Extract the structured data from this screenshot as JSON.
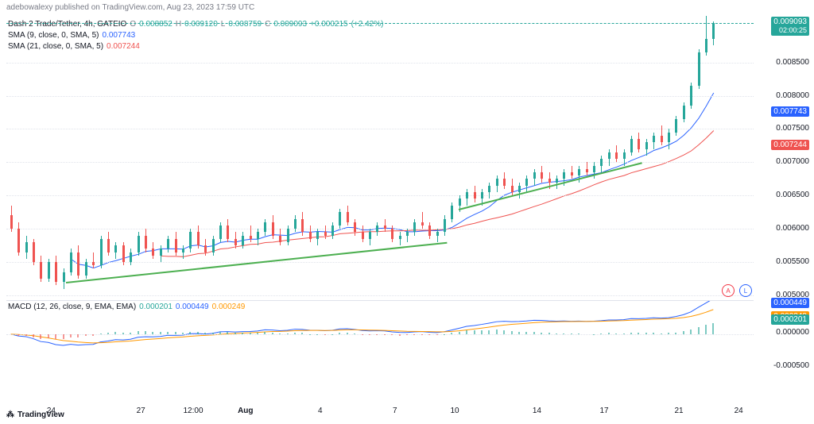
{
  "header": {
    "publisher": "adebowalexy published on TradingView.com, Aug 23, 2023 17:59 UTC"
  },
  "legend": {
    "symbol": "Dash 2 Trade/Tether, 4h, GATEIO",
    "ohlc": {
      "O": "0.008852",
      "H": "0.009120",
      "L": "0.008759",
      "C": "0.009093",
      "change": "+0.000215",
      "change_pct": "(+2.42%)"
    },
    "ohlc_color": "#26a69a",
    "sma9_label": "SMA (9, close, 0, SMA, 5)",
    "sma9_val": "0.007743",
    "sma9_color": "#2962ff",
    "sma21_label": "SMA (21, close, 0, SMA, 5)",
    "sma21_val": "0.007244",
    "sma21_color": "#ef5350"
  },
  "currency": "USDT",
  "price_axis": {
    "min": 0.005,
    "max": 0.0092,
    "ticks": [
      0.005,
      0.0055,
      0.006,
      0.0065,
      0.007,
      0.0075,
      0.008,
      0.0085
    ],
    "badges": [
      {
        "val": "0.009093",
        "sub": "02:00:25",
        "color": "#26a69a",
        "y": 0.009093
      },
      {
        "val": "0.007743",
        "color": "#2962ff",
        "y": 0.007743
      },
      {
        "val": "0.007244",
        "color": "#ef5350",
        "y": 0.007244
      }
    ]
  },
  "x_axis": {
    "ticks": [
      {
        "label": "24",
        "x": 0.06
      },
      {
        "label": "27",
        "x": 0.18
      },
      {
        "label": "12:00",
        "x": 0.25
      },
      {
        "label": "Aug",
        "x": 0.32,
        "bold": true
      },
      {
        "label": "4",
        "x": 0.42
      },
      {
        "label": "7",
        "x": 0.52
      },
      {
        "label": "10",
        "x": 0.6
      },
      {
        "label": "14",
        "x": 0.71
      },
      {
        "label": "17",
        "x": 0.8
      },
      {
        "label": "21",
        "x": 0.9
      },
      {
        "label": "24",
        "x": 0.98
      }
    ]
  },
  "colors": {
    "up": "#26a69a",
    "down": "#ef5350",
    "grid": "#e0e3eb",
    "bg": "#ffffff",
    "trend": "#4caf50"
  },
  "candles": [
    {
      "x": 0.005,
      "o": 0.0062,
      "h": 0.00635,
      "l": 0.00595,
      "c": 0.006
    },
    {
      "x": 0.015,
      "o": 0.006,
      "h": 0.0061,
      "l": 0.0056,
      "c": 0.00565
    },
    {
      "x": 0.025,
      "o": 0.00565,
      "h": 0.0059,
      "l": 0.00555,
      "c": 0.0058
    },
    {
      "x": 0.035,
      "o": 0.0058,
      "h": 0.00585,
      "l": 0.00545,
      "c": 0.0055
    },
    {
      "x": 0.045,
      "o": 0.0055,
      "h": 0.0056,
      "l": 0.0052,
      "c": 0.00525
    },
    {
      "x": 0.055,
      "o": 0.00525,
      "h": 0.00555,
      "l": 0.0052,
      "c": 0.0055
    },
    {
      "x": 0.065,
      "o": 0.0055,
      "h": 0.0056,
      "l": 0.00515,
      "c": 0.0052
    },
    {
      "x": 0.075,
      "o": 0.0052,
      "h": 0.0054,
      "l": 0.0051,
      "c": 0.00535
    },
    {
      "x": 0.085,
      "o": 0.00535,
      "h": 0.0057,
      "l": 0.0053,
      "c": 0.00565
    },
    {
      "x": 0.095,
      "o": 0.00565,
      "h": 0.00575,
      "l": 0.00525,
      "c": 0.0053
    },
    {
      "x": 0.105,
      "o": 0.0053,
      "h": 0.00555,
      "l": 0.00525,
      "c": 0.0055
    },
    {
      "x": 0.115,
      "o": 0.0055,
      "h": 0.00565,
      "l": 0.0054,
      "c": 0.00545
    },
    {
      "x": 0.125,
      "o": 0.00545,
      "h": 0.0059,
      "l": 0.0054,
      "c": 0.00585
    },
    {
      "x": 0.135,
      "o": 0.00585,
      "h": 0.00595,
      "l": 0.0056,
      "c": 0.00565
    },
    {
      "x": 0.145,
      "o": 0.00565,
      "h": 0.0058,
      "l": 0.00555,
      "c": 0.00575
    },
    {
      "x": 0.155,
      "o": 0.00575,
      "h": 0.0058,
      "l": 0.00545,
      "c": 0.0055
    },
    {
      "x": 0.165,
      "o": 0.0055,
      "h": 0.0057,
      "l": 0.00545,
      "c": 0.00565
    },
    {
      "x": 0.175,
      "o": 0.00565,
      "h": 0.00595,
      "l": 0.0056,
      "c": 0.0059
    },
    {
      "x": 0.185,
      "o": 0.0059,
      "h": 0.006,
      "l": 0.00565,
      "c": 0.0057
    },
    {
      "x": 0.195,
      "o": 0.0057,
      "h": 0.0058,
      "l": 0.00555,
      "c": 0.0056
    },
    {
      "x": 0.205,
      "o": 0.0056,
      "h": 0.00575,
      "l": 0.0055,
      "c": 0.0057
    },
    {
      "x": 0.215,
      "o": 0.0057,
      "h": 0.0059,
      "l": 0.00565,
      "c": 0.00585
    },
    {
      "x": 0.225,
      "o": 0.00585,
      "h": 0.00595,
      "l": 0.0056,
      "c": 0.00565
    },
    {
      "x": 0.235,
      "o": 0.00565,
      "h": 0.00575,
      "l": 0.00555,
      "c": 0.0057
    },
    {
      "x": 0.245,
      "o": 0.0057,
      "h": 0.006,
      "l": 0.00565,
      "c": 0.00595
    },
    {
      "x": 0.255,
      "o": 0.00595,
      "h": 0.00605,
      "l": 0.0057,
      "c": 0.00575
    },
    {
      "x": 0.265,
      "o": 0.00575,
      "h": 0.00585,
      "l": 0.0056,
      "c": 0.00565
    },
    {
      "x": 0.275,
      "o": 0.00565,
      "h": 0.0059,
      "l": 0.0056,
      "c": 0.00585
    },
    {
      "x": 0.285,
      "o": 0.00585,
      "h": 0.0061,
      "l": 0.0058,
      "c": 0.00605
    },
    {
      "x": 0.295,
      "o": 0.00605,
      "h": 0.00615,
      "l": 0.0058,
      "c": 0.00585
    },
    {
      "x": 0.305,
      "o": 0.00585,
      "h": 0.00595,
      "l": 0.0057,
      "c": 0.00575
    },
    {
      "x": 0.315,
      "o": 0.00575,
      "h": 0.00595,
      "l": 0.0057,
      "c": 0.0059
    },
    {
      "x": 0.325,
      "o": 0.0059,
      "h": 0.00605,
      "l": 0.0058,
      "c": 0.00585
    },
    {
      "x": 0.335,
      "o": 0.00585,
      "h": 0.006,
      "l": 0.00575,
      "c": 0.00595
    },
    {
      "x": 0.345,
      "o": 0.00595,
      "h": 0.00615,
      "l": 0.0059,
      "c": 0.0061
    },
    {
      "x": 0.355,
      "o": 0.0061,
      "h": 0.0062,
      "l": 0.00585,
      "c": 0.0059
    },
    {
      "x": 0.365,
      "o": 0.0059,
      "h": 0.006,
      "l": 0.00575,
      "c": 0.0058
    },
    {
      "x": 0.375,
      "o": 0.0058,
      "h": 0.00605,
      "l": 0.00575,
      "c": 0.006
    },
    {
      "x": 0.385,
      "o": 0.006,
      "h": 0.0062,
      "l": 0.00595,
      "c": 0.00615
    },
    {
      "x": 0.395,
      "o": 0.00615,
      "h": 0.00625,
      "l": 0.0059,
      "c": 0.00595
    },
    {
      "x": 0.405,
      "o": 0.00595,
      "h": 0.00605,
      "l": 0.0058,
      "c": 0.00585
    },
    {
      "x": 0.415,
      "o": 0.00585,
      "h": 0.006,
      "l": 0.00575,
      "c": 0.00595
    },
    {
      "x": 0.425,
      "o": 0.00595,
      "h": 0.00605,
      "l": 0.00585,
      "c": 0.0059
    },
    {
      "x": 0.435,
      "o": 0.0059,
      "h": 0.0061,
      "l": 0.00585,
      "c": 0.00605
    },
    {
      "x": 0.445,
      "o": 0.00605,
      "h": 0.0063,
      "l": 0.006,
      "c": 0.00625
    },
    {
      "x": 0.455,
      "o": 0.00625,
      "h": 0.00635,
      "l": 0.00605,
      "c": 0.0061
    },
    {
      "x": 0.465,
      "o": 0.0061,
      "h": 0.00615,
      "l": 0.0059,
      "c": 0.00595
    },
    {
      "x": 0.475,
      "o": 0.00595,
      "h": 0.00605,
      "l": 0.0058,
      "c": 0.00585
    },
    {
      "x": 0.485,
      "o": 0.00585,
      "h": 0.006,
      "l": 0.00575,
      "c": 0.00595
    },
    {
      "x": 0.495,
      "o": 0.00595,
      "h": 0.0061,
      "l": 0.0059,
      "c": 0.00605
    },
    {
      "x": 0.505,
      "o": 0.00605,
      "h": 0.00615,
      "l": 0.00595,
      "c": 0.006
    },
    {
      "x": 0.515,
      "o": 0.006,
      "h": 0.00605,
      "l": 0.0058,
      "c": 0.00585
    },
    {
      "x": 0.525,
      "o": 0.00585,
      "h": 0.00595,
      "l": 0.00575,
      "c": 0.0059
    },
    {
      "x": 0.535,
      "o": 0.0059,
      "h": 0.006,
      "l": 0.0058,
      "c": 0.00595
    },
    {
      "x": 0.545,
      "o": 0.00595,
      "h": 0.00615,
      "l": 0.0059,
      "c": 0.0061
    },
    {
      "x": 0.555,
      "o": 0.0061,
      "h": 0.00625,
      "l": 0.006,
      "c": 0.00605
    },
    {
      "x": 0.565,
      "o": 0.00605,
      "h": 0.0061,
      "l": 0.00585,
      "c": 0.0059
    },
    {
      "x": 0.575,
      "o": 0.0059,
      "h": 0.006,
      "l": 0.0058,
      "c": 0.00595
    },
    {
      "x": 0.585,
      "o": 0.00595,
      "h": 0.0062,
      "l": 0.0059,
      "c": 0.00615
    },
    {
      "x": 0.595,
      "o": 0.00615,
      "h": 0.0064,
      "l": 0.0061,
      "c": 0.00635
    },
    {
      "x": 0.605,
      "o": 0.00635,
      "h": 0.0065,
      "l": 0.00625,
      "c": 0.00645
    },
    {
      "x": 0.615,
      "o": 0.00645,
      "h": 0.0066,
      "l": 0.00635,
      "c": 0.00655
    },
    {
      "x": 0.625,
      "o": 0.00655,
      "h": 0.00665,
      "l": 0.0064,
      "c": 0.00645
    },
    {
      "x": 0.635,
      "o": 0.00645,
      "h": 0.0066,
      "l": 0.00635,
      "c": 0.00655
    },
    {
      "x": 0.645,
      "o": 0.00655,
      "h": 0.0067,
      "l": 0.00645,
      "c": 0.00665
    },
    {
      "x": 0.655,
      "o": 0.00665,
      "h": 0.0068,
      "l": 0.00655,
      "c": 0.00675
    },
    {
      "x": 0.665,
      "o": 0.00675,
      "h": 0.00685,
      "l": 0.0066,
      "c": 0.00665
    },
    {
      "x": 0.675,
      "o": 0.00665,
      "h": 0.00675,
      "l": 0.0065,
      "c": 0.00655
    },
    {
      "x": 0.685,
      "o": 0.00655,
      "h": 0.0067,
      "l": 0.00645,
      "c": 0.00665
    },
    {
      "x": 0.695,
      "o": 0.00665,
      "h": 0.0068,
      "l": 0.00655,
      "c": 0.00675
    },
    {
      "x": 0.705,
      "o": 0.00675,
      "h": 0.0069,
      "l": 0.00665,
      "c": 0.00685
    },
    {
      "x": 0.715,
      "o": 0.00685,
      "h": 0.00695,
      "l": 0.0067,
      "c": 0.00675
    },
    {
      "x": 0.725,
      "o": 0.00675,
      "h": 0.00685,
      "l": 0.0066,
      "c": 0.0067
    },
    {
      "x": 0.735,
      "o": 0.0067,
      "h": 0.0068,
      "l": 0.0066,
      "c": 0.00675
    },
    {
      "x": 0.745,
      "o": 0.00675,
      "h": 0.0069,
      "l": 0.00665,
      "c": 0.00685
    },
    {
      "x": 0.755,
      "o": 0.00685,
      "h": 0.00695,
      "l": 0.00675,
      "c": 0.0068
    },
    {
      "x": 0.765,
      "o": 0.0068,
      "h": 0.00695,
      "l": 0.0067,
      "c": 0.0069
    },
    {
      "x": 0.775,
      "o": 0.0069,
      "h": 0.007,
      "l": 0.0068,
      "c": 0.00685
    },
    {
      "x": 0.785,
      "o": 0.00685,
      "h": 0.007,
      "l": 0.00675,
      "c": 0.00695
    },
    {
      "x": 0.795,
      "o": 0.00695,
      "h": 0.0071,
      "l": 0.00685,
      "c": 0.00705
    },
    {
      "x": 0.805,
      "o": 0.00705,
      "h": 0.0072,
      "l": 0.00695,
      "c": 0.00715
    },
    {
      "x": 0.815,
      "o": 0.00715,
      "h": 0.00725,
      "l": 0.007,
      "c": 0.00705
    },
    {
      "x": 0.825,
      "o": 0.00705,
      "h": 0.0072,
      "l": 0.00695,
      "c": 0.00715
    },
    {
      "x": 0.835,
      "o": 0.00715,
      "h": 0.0074,
      "l": 0.0071,
      "c": 0.00735
    },
    {
      "x": 0.845,
      "o": 0.00735,
      "h": 0.00745,
      "l": 0.00715,
      "c": 0.0072
    },
    {
      "x": 0.855,
      "o": 0.0072,
      "h": 0.00735,
      "l": 0.0071,
      "c": 0.0073
    },
    {
      "x": 0.865,
      "o": 0.0073,
      "h": 0.00745,
      "l": 0.0072,
      "c": 0.0074
    },
    {
      "x": 0.875,
      "o": 0.0074,
      "h": 0.00755,
      "l": 0.00725,
      "c": 0.0073
    },
    {
      "x": 0.885,
      "o": 0.0073,
      "h": 0.0075,
      "l": 0.0072,
      "c": 0.00745
    },
    {
      "x": 0.895,
      "o": 0.00745,
      "h": 0.0077,
      "l": 0.0074,
      "c": 0.00765
    },
    {
      "x": 0.905,
      "o": 0.00765,
      "h": 0.0079,
      "l": 0.0076,
      "c": 0.00785
    },
    {
      "x": 0.915,
      "o": 0.00785,
      "h": 0.0082,
      "l": 0.0078,
      "c": 0.00815
    },
    {
      "x": 0.925,
      "o": 0.00815,
      "h": 0.0087,
      "l": 0.0081,
      "c": 0.00865
    },
    {
      "x": 0.935,
      "o": 0.00865,
      "h": 0.0092,
      "l": 0.0086,
      "c": 0.00885
    },
    {
      "x": 0.945,
      "o": 0.00885,
      "h": 0.00912,
      "l": 0.00876,
      "c": 0.00909
    }
  ],
  "trend_lines": [
    {
      "x1": 0.08,
      "y1": 0.0052,
      "x2": 0.59,
      "y2": 0.0058
    },
    {
      "x1": 0.605,
      "y1": 0.0063,
      "x2": 0.85,
      "y2": 0.007
    }
  ],
  "macd": {
    "label": "MACD (12, 26, close, 9, EMA, EMA)",
    "val_hist": "0.000201",
    "hist_color": "#26a69a",
    "val_macd": "0.000449",
    "macd_color": "#2962ff",
    "val_sig": "0.000249",
    "sig_color": "#ff9800",
    "y_min": -0.0006,
    "y_max": 0.0005,
    "y_ticks": [
      {
        "val": "0.000449",
        "color": "#2962ff",
        "y": 0.000449
      },
      {
        "val": "0.000249",
        "color": "#ff9800",
        "y": 0.000249
      },
      {
        "val": "0.000201",
        "color": "#26a69a",
        "y": 0.000201
      },
      {
        "val": "0.000000",
        "color": "#787b86",
        "y": 0.0
      },
      {
        "val": "-0.000500",
        "color": "#787b86",
        "y": -0.0005
      }
    ]
  },
  "footer": {
    "brand": "TradingView"
  }
}
